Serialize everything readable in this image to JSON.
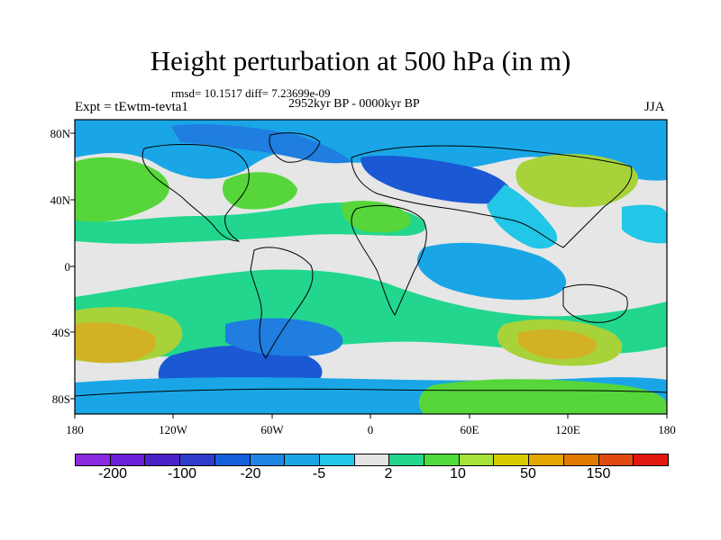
{
  "title": "Height perturbation at 500 hPa (in m)",
  "stats": "rmsd= 10.1517  diff= 7.23699e-09",
  "period": "2952kyr BP - 0000kyr BP",
  "expt": "Expt = tEwtm-tevta1",
  "season": "JJA",
  "lat_labels": [
    "80N",
    "40N",
    "0",
    "40S",
    "80S"
  ],
  "lon_labels": [
    "180",
    "120W",
    "60W",
    "0",
    "60E",
    "120E",
    "180"
  ],
  "colorbar": {
    "colors": [
      "#8a2be2",
      "#6a1fd8",
      "#4b22c8",
      "#2f3ccc",
      "#1560dd",
      "#1f86e6",
      "#1aa6e6",
      "#22c6e6",
      "#e4e4e4",
      "#22d68e",
      "#4fdc3a",
      "#a6e23a",
      "#d6cc00",
      "#e4a600",
      "#e07a00",
      "#e04a10",
      "#e21810"
    ],
    "labels": [
      "-200",
      "-100",
      "-20",
      "-5",
      "2",
      "10",
      "50",
      "150"
    ]
  },
  "map_colors": {
    "neutral": "#e6e6e6",
    "pos_light": "#22d68e",
    "pos_green": "#56d63a",
    "pos_yellow": "#a8d23a",
    "pos_orange": "#d2b224",
    "neg_cyan": "#22c6e6",
    "neg_blue1": "#1aa6e6",
    "neg_blue2": "#1f7ee0",
    "neg_blue3": "#1a58d4"
  }
}
